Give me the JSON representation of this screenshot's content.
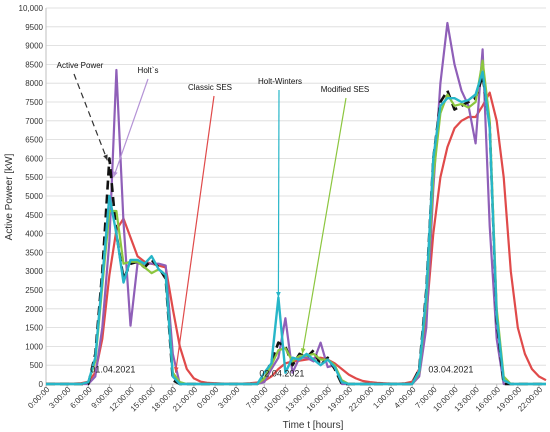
{
  "chart_data": {
    "type": "line",
    "title": "",
    "xlabel": "Time t [hours]",
    "ylabel": "Active Poweer  [kW]",
    "ylim": [
      0,
      10000
    ],
    "yticks": [
      "0",
      "500",
      "1000",
      "1500",
      "2000",
      "2500",
      "3000",
      "3500",
      "4000",
      "4500",
      "5000",
      "5500",
      "6000",
      "6500",
      "7000",
      "7500",
      "8000",
      "8500",
      "9000",
      "9500",
      "10,000"
    ],
    "xticks": [
      "0:00:00",
      "3:00:00",
      "6:00:00",
      "9:00:00",
      "12:00:00",
      "15:00:00",
      "18:00:00",
      "21:00:00",
      "0:00:00",
      "3:00:00",
      "7:00:00",
      "10:00:00",
      "13:00:00",
      "16:00:00",
      "19:00:00",
      "22:00:00",
      "1:00:00",
      "4:00:00",
      "7:00:00",
      "10:00:00",
      "13:00:00",
      "16:00:00",
      "19:00:00",
      "22:00:00"
    ],
    "xticks_hours": [
      0,
      3,
      6,
      9,
      12,
      15,
      18,
      21,
      24,
      27,
      31,
      34,
      37,
      40,
      43,
      46,
      49,
      52,
      55,
      58,
      61,
      64,
      67,
      70
    ],
    "xlim_hours": [
      0,
      71
    ],
    "grid": true,
    "legend": "annotations with arrows",
    "day_labels": [
      {
        "text": "01.04.2021",
        "hour": 9.5,
        "y": 250
      },
      {
        "text": "02.04.2021",
        "hour": 33.5,
        "y": 150
      },
      {
        "text": "03.04.2021",
        "hour": 57.5,
        "y": 250
      }
    ],
    "annotations": [
      {
        "text": "Active Power",
        "series": "Active Power"
      },
      {
        "text": "Holt`s",
        "series": "Holt`s"
      },
      {
        "text": "Classic SES",
        "series": "Classic SES"
      },
      {
        "text": "Holt-Winters",
        "series": "Holt-Winters"
      },
      {
        "text": "Modified SES",
        "series": "Modified SES"
      }
    ],
    "x_hours": [
      0,
      1,
      2,
      3,
      4,
      5,
      6,
      7,
      8,
      9,
      10,
      11,
      12,
      13,
      14,
      15,
      16,
      17,
      18,
      19,
      20,
      21,
      22,
      23,
      24,
      25,
      26,
      27,
      28,
      29,
      30,
      31,
      32,
      33,
      34,
      35,
      36,
      37,
      38,
      39,
      40,
      41,
      42,
      43,
      44,
      45,
      46,
      47,
      48,
      49,
      50,
      51,
      52,
      53,
      54,
      55,
      56,
      57,
      58,
      59,
      60,
      61,
      62,
      63,
      64,
      65,
      66,
      67,
      68,
      69,
      70,
      71
    ],
    "series": [
      {
        "name": "Classic SES",
        "color": "#e04a4a",
        "width": 2.2,
        "dash": "",
        "values": [
          10,
          10,
          10,
          10,
          10,
          20,
          60,
          300,
          1200,
          2900,
          4100,
          4400,
          3900,
          3400,
          3250,
          3200,
          3150,
          3100,
          2000,
          1000,
          400,
          150,
          60,
          30,
          20,
          10,
          10,
          10,
          10,
          20,
          40,
          80,
          200,
          400,
          550,
          600,
          620,
          650,
          680,
          700,
          650,
          550,
          400,
          250,
          150,
          80,
          50,
          30,
          20,
          10,
          10,
          20,
          60,
          400,
          1800,
          4000,
          5500,
          6300,
          6800,
          7000,
          7100,
          7100,
          7400,
          7750,
          7000,
          5500,
          3000,
          1500,
          800,
          400,
          200,
          100
        ]
      },
      {
        "name": "Holt`s",
        "color": "#8f5fb8",
        "width": 2.2,
        "dash": "",
        "values": [
          0,
          0,
          0,
          0,
          0,
          0,
          0,
          200,
          1500,
          3800,
          8350,
          4300,
          1550,
          3200,
          3200,
          3200,
          3200,
          3150,
          800,
          0,
          0,
          0,
          0,
          0,
          0,
          0,
          0,
          0,
          0,
          0,
          0,
          50,
          400,
          700,
          1750,
          300,
          700,
          700,
          600,
          1100,
          450,
          500,
          0,
          0,
          0,
          0,
          0,
          0,
          0,
          0,
          0,
          0,
          0,
          200,
          1500,
          5200,
          8000,
          9600,
          8500,
          7800,
          7400,
          6400,
          8900,
          4200,
          1200,
          0,
          0,
          0,
          0,
          0,
          0,
          0
        ]
      },
      {
        "name": "Active Power",
        "color": "#111111",
        "width": 2.6,
        "dash": "9,5",
        "values": [
          0,
          0,
          0,
          0,
          0,
          0,
          0,
          800,
          3000,
          6000,
          4000,
          2800,
          3200,
          3250,
          3100,
          3300,
          3100,
          2800,
          100,
          0,
          0,
          0,
          0,
          0,
          0,
          0,
          0,
          0,
          0,
          0,
          0,
          200,
          600,
          1100,
          1000,
          500,
          800,
          700,
          900,
          500,
          700,
          400,
          0,
          0,
          0,
          0,
          0,
          0,
          0,
          0,
          0,
          0,
          0,
          400,
          2500,
          6000,
          7500,
          7800,
          7300,
          7400,
          7500,
          7600,
          8200,
          6900,
          1700,
          0,
          0,
          0,
          0,
          0,
          0,
          0
        ]
      },
      {
        "name": "Modified SES",
        "color": "#8cc63f",
        "width": 2.2,
        "dash": "",
        "values": [
          0,
          0,
          0,
          0,
          0,
          0,
          50,
          600,
          2600,
          4600,
          4600,
          3200,
          3250,
          3250,
          3100,
          2950,
          3050,
          2900,
          300,
          50,
          0,
          0,
          0,
          0,
          0,
          0,
          0,
          0,
          0,
          0,
          0,
          150,
          500,
          900,
          950,
          600,
          750,
          750,
          800,
          650,
          650,
          500,
          100,
          0,
          0,
          0,
          0,
          0,
          0,
          0,
          0,
          0,
          0,
          300,
          2200,
          5500,
          7200,
          7700,
          7400,
          7450,
          7350,
          7500,
          8600,
          7000,
          2000,
          200,
          0,
          0,
          0,
          0,
          0,
          0
        ]
      },
      {
        "name": "Holt-Winters",
        "color": "#27b6c8",
        "width": 2.4,
        "dash": "",
        "values": [
          0,
          0,
          0,
          0,
          0,
          0,
          50,
          700,
          2800,
          5000,
          4000,
          2700,
          3300,
          3300,
          3200,
          3400,
          3050,
          2900,
          200,
          0,
          0,
          0,
          0,
          0,
          0,
          0,
          0,
          0,
          0,
          0,
          0,
          300,
          550,
          2300,
          300,
          700,
          650,
          800,
          650,
          500,
          650,
          450,
          50,
          0,
          0,
          0,
          0,
          0,
          0,
          0,
          0,
          0,
          0,
          350,
          2400,
          6000,
          7400,
          7600,
          7600,
          7500,
          7550,
          7700,
          8300,
          6800,
          1800,
          100,
          0,
          0,
          0,
          0,
          0,
          0
        ]
      }
    ]
  }
}
